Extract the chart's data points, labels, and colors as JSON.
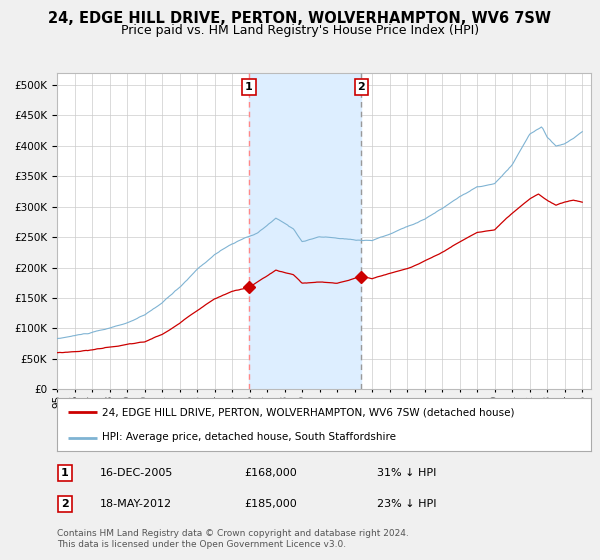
{
  "title": "24, EDGE HILL DRIVE, PERTON, WOLVERHAMPTON, WV6 7SW",
  "subtitle": "Price paid vs. HM Land Registry's House Price Index (HPI)",
  "legend_property": "24, EDGE HILL DRIVE, PERTON, WOLVERHAMPTON, WV6 7SW (detached house)",
  "legend_hpi": "HPI: Average price, detached house, South Staffordshire",
  "footnote": "Contains HM Land Registry data © Crown copyright and database right 2024.\nThis data is licensed under the Open Government Licence v3.0.",
  "sale1_date": "16-DEC-2005",
  "sale1_price": 168000,
  "sale1_label": "31% ↓ HPI",
  "sale2_date": "18-MAY-2012",
  "sale2_price": 185000,
  "sale2_label": "23% ↓ HPI",
  "property_color": "#cc0000",
  "hpi_color": "#7fb3d3",
  "shade_color": "#ddeeff",
  "vline1_color": "#ff8888",
  "vline2_color": "#999999",
  "ylim": [
    0,
    520000
  ],
  "yticks": [
    0,
    50000,
    100000,
    150000,
    200000,
    250000,
    300000,
    350000,
    400000,
    450000,
    500000
  ],
  "background_color": "#f0f0f0",
  "plot_bg_color": "#ffffff",
  "grid_color": "#cccccc",
  "title_fontsize": 10.5,
  "subtitle_fontsize": 9,
  "axis_fontsize": 7.5,
  "legend_fontsize": 8,
  "footnote_fontsize": 6.5
}
